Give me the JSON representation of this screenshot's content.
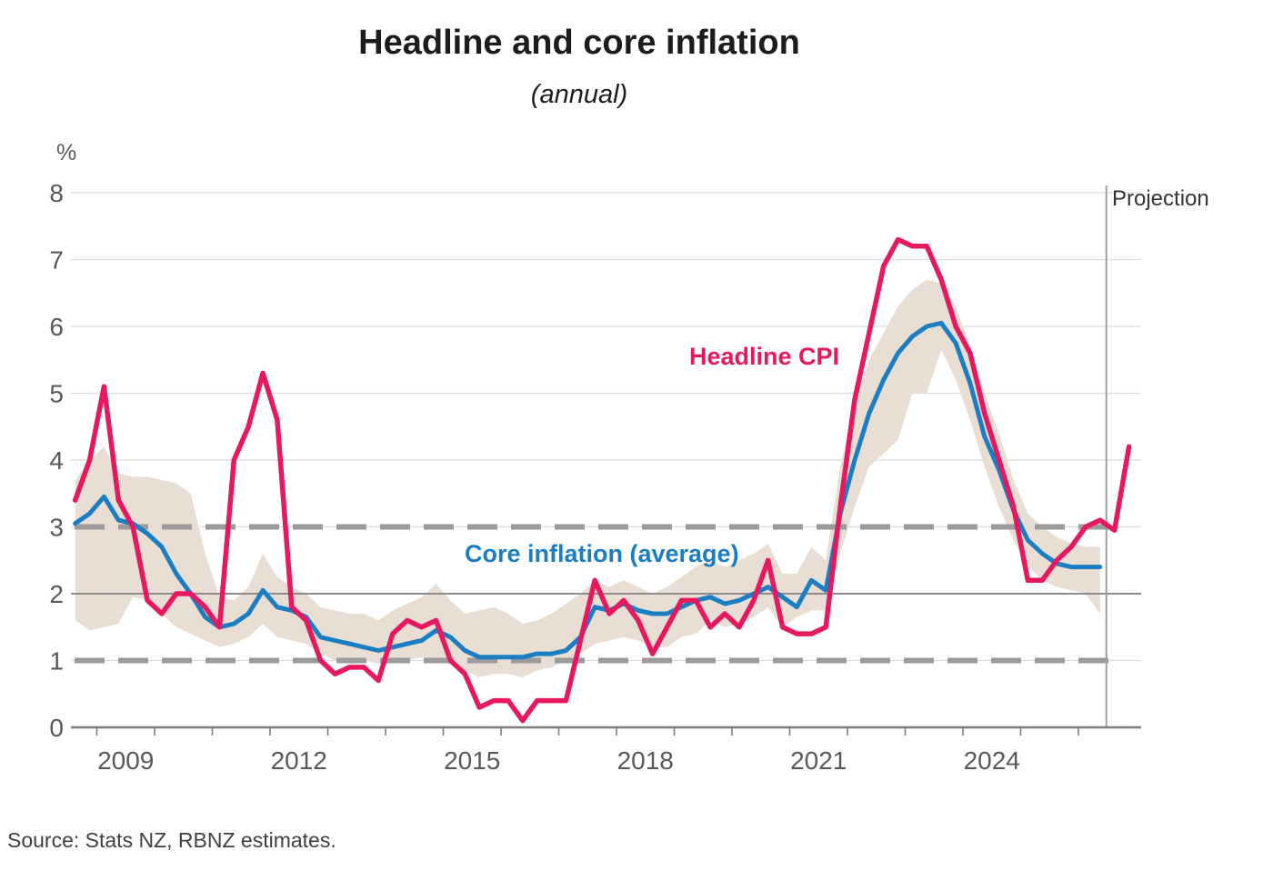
{
  "chart": {
    "title": "Headline and core inflation",
    "subtitle": "(annual)",
    "unit": "%",
    "series_labels": {
      "headline": "Headline CPI",
      "core": "Core inflation (average)"
    },
    "projection": {
      "label": "Projection",
      "starts": "2026 Q1"
    },
    "source": "Source: Stats NZ, RBNZ estimates.",
    "colors": {
      "headline_pink": "#e6185f",
      "core_blue": "#1b7ec2",
      "band_beige": "#e8ded3",
      "dashed_reference": "#9b9b9b",
      "solid_reference": "#8c8c8c",
      "gridline": "#dcdcdc",
      "axis": "#7d7d7d",
      "tick_label": "#595959",
      "projection_line": "#a0a0a0"
    }
  },
  "chart_data": {
    "type": "line",
    "title": "Headline and core inflation",
    "subtitle": "(annual)",
    "ylabel": "%",
    "ylim": [
      0,
      8
    ],
    "yticks": [
      0,
      1,
      2,
      3,
      4,
      5,
      6,
      7,
      8
    ],
    "x_tick_labels": [
      "2009",
      "2012",
      "2015",
      "2018",
      "2021",
      "2024"
    ],
    "frequency": "quarterly",
    "start_quarter": "2008 Q1",
    "grid": "light horizontal gridlines at each integer",
    "legend_position": "in-chart text annotations",
    "target_band": {
      "lower": 1,
      "upper": 3,
      "midpoint": 2,
      "style": "lower/upper dashed gray, midpoint solid gray"
    },
    "projection_line": {
      "label": "Projection",
      "at_quarter": "2026 Q1"
    },
    "series": [
      {
        "name": "Headline CPI",
        "type": "line",
        "color": "#e6185f",
        "start_quarter": "2008 Q1",
        "end_quarter": "2026 Q2",
        "values": [
          3.4,
          4.0,
          5.1,
          3.4,
          3.0,
          1.9,
          1.7,
          2.0,
          2.0,
          1.8,
          1.5,
          4.0,
          4.5,
          5.3,
          4.6,
          1.8,
          1.6,
          1.0,
          0.8,
          0.9,
          0.9,
          0.7,
          1.4,
          1.6,
          1.5,
          1.6,
          1.0,
          0.8,
          0.3,
          0.4,
          0.4,
          0.1,
          0.4,
          0.4,
          0.4,
          1.3,
          2.2,
          1.7,
          1.9,
          1.6,
          1.1,
          1.5,
          1.9,
          1.9,
          1.5,
          1.7,
          1.5,
          1.9,
          2.5,
          1.5,
          1.4,
          1.4,
          1.5,
          3.3,
          4.9,
          5.9,
          6.9,
          7.3,
          7.2,
          7.2,
          6.7,
          6.0,
          5.6,
          4.7,
          4.0,
          3.3,
          2.2,
          2.2,
          2.5,
          2.7,
          3.0,
          3.1,
          2.95,
          4.2
        ]
      },
      {
        "name": "Core inflation (average)",
        "type": "line",
        "color": "#1b7ec2",
        "start_quarter": "2008 Q1",
        "end_quarter": "2025 Q4",
        "values": [
          3.05,
          3.2,
          3.45,
          3.1,
          3.05,
          2.9,
          2.7,
          2.3,
          2.0,
          1.65,
          1.5,
          1.55,
          1.7,
          2.05,
          1.8,
          1.75,
          1.65,
          1.35,
          1.3,
          1.25,
          1.2,
          1.15,
          1.2,
          1.25,
          1.3,
          1.45,
          1.35,
          1.15,
          1.05,
          1.05,
          1.05,
          1.05,
          1.1,
          1.1,
          1.15,
          1.35,
          1.8,
          1.75,
          1.85,
          1.75,
          1.7,
          1.7,
          1.8,
          1.9,
          1.95,
          1.85,
          1.9,
          2.0,
          2.1,
          1.95,
          1.8,
          2.2,
          2.05,
          3.2,
          4.0,
          4.7,
          5.2,
          5.6,
          5.85,
          6.0,
          6.05,
          5.75,
          5.15,
          4.35,
          3.85,
          3.25,
          2.8,
          2.6,
          2.45,
          2.4,
          2.4,
          2.4
        ]
      },
      {
        "name": "Range of core inflation measures",
        "type": "band",
        "color": "#e8ded3",
        "start_quarter": "2008 Q1",
        "end_quarter": "2025 Q4",
        "upper": [
          3.7,
          4.0,
          4.2,
          3.8,
          3.75,
          3.75,
          3.7,
          3.65,
          3.5,
          2.6,
          1.95,
          1.9,
          2.1,
          2.6,
          2.25,
          2.1,
          2.0,
          1.8,
          1.75,
          1.7,
          1.7,
          1.6,
          1.75,
          1.85,
          1.95,
          2.15,
          1.9,
          1.7,
          1.75,
          1.8,
          1.7,
          1.55,
          1.6,
          1.7,
          1.85,
          2.0,
          2.2,
          2.1,
          2.2,
          2.1,
          2.0,
          2.1,
          2.25,
          2.4,
          2.5,
          2.4,
          2.5,
          2.6,
          2.75,
          2.3,
          2.3,
          2.7,
          2.5,
          3.9,
          4.9,
          5.5,
          5.9,
          6.3,
          6.55,
          6.7,
          6.65,
          6.3,
          5.7,
          5.0,
          4.4,
          3.7,
          3.2,
          3.0,
          2.85,
          2.75,
          2.7,
          2.7
        ],
        "lower": [
          1.6,
          1.45,
          1.5,
          1.55,
          1.95,
          1.9,
          1.7,
          1.5,
          1.4,
          1.3,
          1.2,
          1.25,
          1.35,
          1.55,
          1.35,
          1.3,
          1.25,
          1.1,
          1.0,
          0.95,
          1.0,
          0.95,
          1.0,
          1.0,
          1.05,
          1.0,
          0.95,
          0.85,
          0.75,
          0.8,
          0.8,
          0.75,
          0.85,
          0.9,
          1.0,
          1.1,
          1.25,
          1.3,
          1.35,
          1.3,
          1.2,
          1.2,
          1.35,
          1.4,
          1.6,
          1.5,
          1.55,
          1.65,
          1.8,
          1.5,
          1.65,
          1.75,
          1.75,
          2.6,
          3.3,
          3.9,
          4.1,
          4.3,
          5.0,
          5.0,
          5.65,
          5.2,
          4.6,
          3.9,
          3.3,
          2.8,
          2.4,
          2.2,
          2.1,
          2.05,
          2.0,
          1.7
        ]
      }
    ],
    "source": "Source: Stats NZ, RBNZ estimates."
  }
}
